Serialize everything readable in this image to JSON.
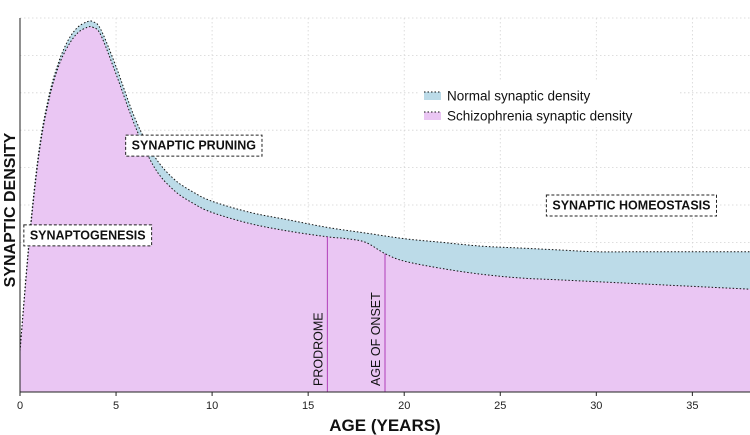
{
  "chart_data": {
    "type": "area",
    "xlabel": "AGE (YEARS)",
    "ylabel": "SYNAPTIC DENSITY",
    "xlim": [
      0,
      38
    ],
    "ylim": [
      0,
      1
    ],
    "xticks": [
      0,
      5,
      10,
      15,
      20,
      25,
      30,
      35
    ],
    "grid": true,
    "legend_position": "top-right",
    "series": [
      {
        "name": "Normal synaptic density",
        "color": "#bcdbe8",
        "x": [
          0,
          0.5,
          1,
          1.5,
          2,
          2.5,
          3,
          3.5,
          3.8,
          4.2,
          5,
          6,
          7,
          8,
          9,
          10,
          12,
          14,
          16,
          18,
          20,
          22,
          24,
          26,
          28,
          30,
          32,
          34,
          36,
          38
        ],
        "y": [
          0.11,
          0.42,
          0.65,
          0.79,
          0.88,
          0.94,
          0.975,
          0.99,
          0.99,
          0.97,
          0.87,
          0.73,
          0.63,
          0.57,
          0.535,
          0.51,
          0.48,
          0.46,
          0.44,
          0.425,
          0.41,
          0.4,
          0.39,
          0.385,
          0.38,
          0.375,
          0.375,
          0.375,
          0.375,
          0.375
        ]
      },
      {
        "name": "Schizophrenia synaptic density",
        "color": "#eac6f3",
        "x": [
          0,
          0.5,
          1,
          1.5,
          2,
          2.5,
          3,
          3.5,
          3.8,
          4.2,
          5,
          6,
          7,
          8,
          9,
          10,
          12,
          14,
          16,
          17,
          18,
          19,
          20,
          22,
          24,
          26,
          28,
          30,
          32,
          34,
          36,
          38
        ],
        "y": [
          0.11,
          0.41,
          0.64,
          0.78,
          0.87,
          0.925,
          0.96,
          0.975,
          0.975,
          0.955,
          0.85,
          0.71,
          0.6,
          0.54,
          0.505,
          0.48,
          0.45,
          0.43,
          0.415,
          0.41,
          0.4,
          0.37,
          0.35,
          0.33,
          0.315,
          0.305,
          0.3,
          0.295,
          0.29,
          0.285,
          0.28,
          0.275
        ]
      }
    ],
    "annotations": [
      {
        "text": "SYNAPTOGENESIS",
        "x": 0.2,
        "y": 0.42
      },
      {
        "text": "SYNAPTIC PRUNING",
        "x": 5.5,
        "y": 0.66
      },
      {
        "text": "SYNAPTIC HOMEOSTASIS",
        "x": 27.4,
        "y": 0.5
      }
    ],
    "vlines": [
      {
        "label": "PRODROME",
        "x": 16
      },
      {
        "label": "AGE OF ONSET",
        "x": 19
      }
    ]
  }
}
